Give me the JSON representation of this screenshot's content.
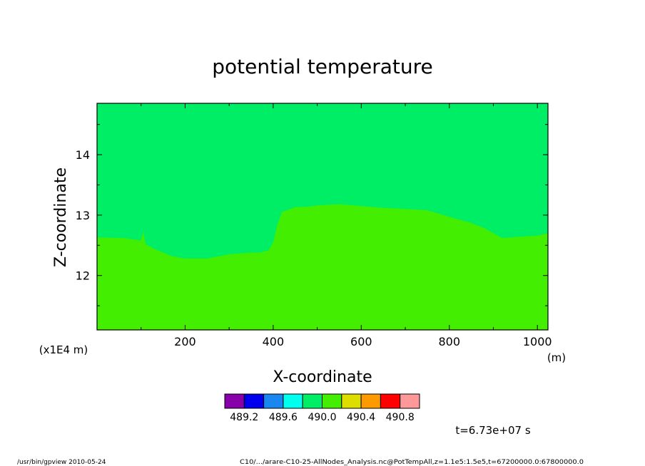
{
  "chart_data": {
    "type": "heatmap",
    "title": "potential temperature",
    "xlabel": "X-coordinate",
    "ylabel": "Z-coordinate",
    "x_unit": "(m)",
    "y_unit": "(x1E4 m)",
    "xlim": [
      0,
      1024
    ],
    "ylim": [
      11.1,
      14.85
    ],
    "x_ticks": [
      200,
      400,
      600,
      800,
      1000
    ],
    "y_ticks": [
      12,
      13,
      14
    ],
    "upper_region_value_range": [
      489.8,
      490.0
    ],
    "lower_region_value_range": [
      490.0,
      490.2
    ],
    "interface": {
      "x": [
        0,
        60,
        100,
        105,
        110,
        130,
        170,
        200,
        250,
        300,
        350,
        370,
        390,
        400,
        410,
        420,
        450,
        480,
        500,
        550,
        600,
        650,
        700,
        750,
        800,
        850,
        880,
        900,
        920,
        960,
        1000,
        1024
      ],
      "z": [
        12.63,
        12.62,
        12.58,
        12.72,
        12.52,
        12.44,
        12.32,
        12.28,
        12.28,
        12.35,
        12.38,
        12.38,
        12.42,
        12.55,
        12.85,
        13.05,
        13.13,
        13.14,
        13.16,
        13.18,
        13.15,
        13.12,
        13.1,
        13.08,
        12.97,
        12.87,
        12.78,
        12.7,
        12.62,
        12.64,
        12.66,
        12.7
      ]
    },
    "colorbar": {
      "colors": [
        "#8800aa",
        "#0000ee",
        "#1a86ef",
        "#00ffee",
        "#00ee66",
        "#44ee00",
        "#dddd00",
        "#ff9900",
        "#ff0000",
        "#ff9999"
      ],
      "labels": [
        "489.2",
        "489.6",
        "490.0",
        "490.4",
        "490.8"
      ]
    },
    "time_label": "t=6.73e+07 s"
  },
  "footer": {
    "left": "/usr/bin/gpview   2010-05-24",
    "right": "C10/.../arare-C10-25-AllNodes_Analysis.nc@PotTempAll,z=1.1e5:1.5e5,t=67200000.0:67800000.0"
  }
}
